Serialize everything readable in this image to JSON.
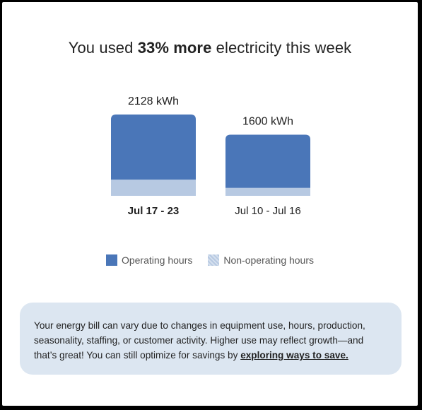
{
  "title": {
    "prefix": "You used ",
    "highlight": "33% more",
    "suffix": " electricity this week"
  },
  "chart_data": {
    "type": "bar",
    "stacked": true,
    "categories": [
      "Jul 17 - 23",
      "Jul 10 - Jul 16"
    ],
    "bold_category_index": 0,
    "totals": [
      2128,
      1600
    ],
    "total_labels": [
      "2128 kWh",
      "1600 kWh"
    ],
    "unit": "kWh",
    "series": [
      {
        "name": "Non-operating hours",
        "values": [
          424,
          208
        ],
        "color": "#b7c9e2"
      },
      {
        "name": "Operating hours",
        "values": [
          1704,
          1392
        ],
        "color": "#4a76b8"
      }
    ],
    "ylim": [
      0,
      2128
    ],
    "grid": false,
    "legend_position": "bottom-center"
  },
  "legend": [
    {
      "label": "Operating hours",
      "color": "#4a76b8",
      "icon": "solid-swatch"
    },
    {
      "label": "Non-operating hours",
      "color": "#b7c9e2",
      "icon": "hatched-swatch"
    }
  ],
  "note": {
    "text": "Your energy bill can vary due to changes in equipment use, hours, production, seasonality, staffing, or customer activity. Higher use may reflect growth—and that’s great! You can still optimize for savings by ",
    "link": "exploring ways to save."
  }
}
